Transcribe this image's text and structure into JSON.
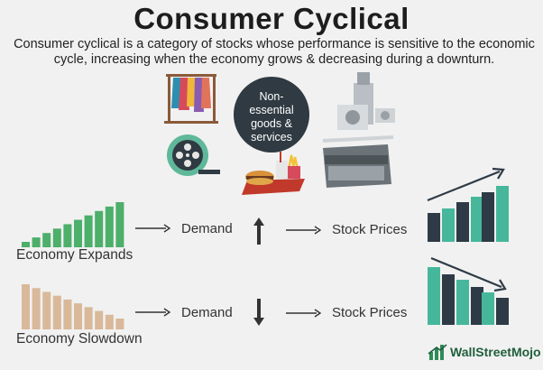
{
  "title": "Consumer Cyclical",
  "description": "Consumer cyclical is a category of stocks whose performance is sensitive to the economic cycle, increasing when the economy grows & decreasing during a downturn.",
  "center_bubble": {
    "lines": [
      "Non-",
      "essential",
      "goods &",
      "services"
    ]
  },
  "icons": [
    "clothes-rack-icon",
    "film-reel-icon",
    "fast-food-icon",
    "kitchen-appliances-icon"
  ],
  "rows": [
    {
      "economy_label": "Economy Expands",
      "demand_label": "Demand",
      "demand_direction": "up",
      "stock_label": "Stock Prices",
      "color": "#4caf6a"
    },
    {
      "economy_label": "Economy Slowdown",
      "demand_label": "Demand",
      "demand_direction": "down",
      "stock_label": "Stock Prices",
      "color": "#d9b99a"
    }
  ],
  "colors": {
    "dark_bar": "#2e3b46",
    "teal_bar": "#46b79b",
    "green": "#4caf6a",
    "tan": "#d9b99a"
  },
  "brand": {
    "name": "WallStreetMojo"
  }
}
